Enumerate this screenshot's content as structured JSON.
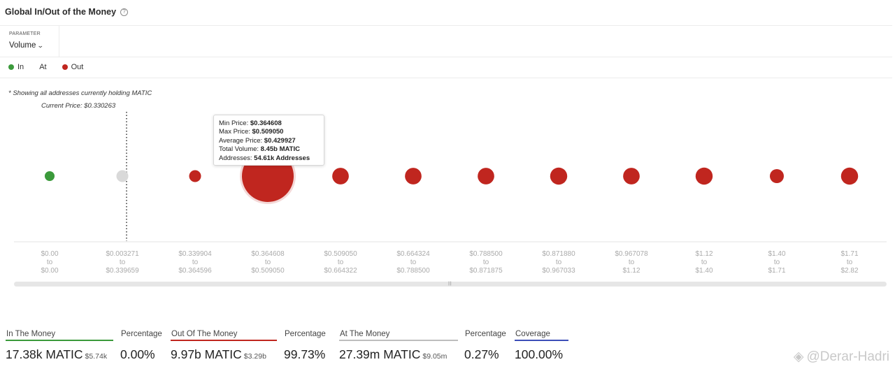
{
  "header": {
    "title": "Global In/Out of the Money",
    "help_icon": "question-circle-icon"
  },
  "parameter": {
    "label": "PARAMETER",
    "value": "Volume"
  },
  "legend": [
    {
      "label": "In",
      "color": "#3b9a3b"
    },
    {
      "label": "At",
      "color": "#d9d9d9"
    },
    {
      "label": "Out",
      "color": "#c0261f"
    }
  ],
  "note": "* Showing all addresses currently holding MATIC",
  "current_price_label": "Current Price: $0.330263",
  "tooltip": {
    "rows": [
      {
        "label": "Min Price: ",
        "value": "$0.364608"
      },
      {
        "label": "Max Price: ",
        "value": "$0.509050"
      },
      {
        "label": "Average Price: ",
        "value": "$0.429927"
      },
      {
        "label": "Total Volume: ",
        "value": "8.45b MATIC"
      },
      {
        "label": "Addresses: ",
        "value": "54.61k Addresses"
      }
    ]
  },
  "chart_data": {
    "type": "scatter",
    "current_price": 0.330263,
    "current_price_bucket_index": 1,
    "highlighted_index": 3,
    "buckets": [
      {
        "from": "$0.00",
        "to": "$0.00",
        "status": "in",
        "relative_size": 0.19
      },
      {
        "from": "$0.003271",
        "to": "$0.339659",
        "status": "at",
        "relative_size": 0.23
      },
      {
        "from": "$0.339904",
        "to": "$0.364596",
        "status": "out",
        "relative_size": 0.23
      },
      {
        "from": "$0.364608",
        "to": "$0.509050",
        "status": "out",
        "relative_size": 1.0
      },
      {
        "from": "$0.509050",
        "to": "$0.664322",
        "status": "out",
        "relative_size": 0.32
      },
      {
        "from": "$0.664324",
        "to": "$0.788500",
        "status": "out",
        "relative_size": 0.32
      },
      {
        "from": "$0.788500",
        "to": "$0.871875",
        "status": "out",
        "relative_size": 0.32
      },
      {
        "from": "$0.871880",
        "to": "$0.967033",
        "status": "out",
        "relative_size": 0.33
      },
      {
        "from": "$0.967078",
        "to": "$1.12",
        "status": "out",
        "relative_size": 0.32
      },
      {
        "from": "$1.12",
        "to": "$1.40",
        "status": "out",
        "relative_size": 0.33
      },
      {
        "from": "$1.40",
        "to": "$1.71",
        "status": "out",
        "relative_size": 0.27
      },
      {
        "from": "$1.71",
        "to": "$2.82",
        "status": "out",
        "relative_size": 0.33
      }
    ],
    "to_word": "to",
    "colors": {
      "in": "#3b9a3b",
      "at": "#d9d9d9",
      "out": "#c0261f"
    }
  },
  "stats": [
    {
      "label": "In The Money",
      "value": "17.38k MATIC",
      "sub": "$5.74k",
      "color": "#3b9a3b"
    },
    {
      "label": "Percentage",
      "value": "0.00%",
      "sub": "",
      "color": ""
    },
    {
      "label": "Out Of The Money",
      "value": "9.97b MATIC",
      "sub": "$3.29b",
      "color": "#c0261f"
    },
    {
      "label": "Percentage",
      "value": "99.73%",
      "sub": "",
      "color": ""
    },
    {
      "label": "At The Money",
      "value": "27.39m MATIC",
      "sub": "$9.05m",
      "color": "#bdbdbd"
    },
    {
      "label": "Percentage",
      "value": "0.27%",
      "sub": "",
      "color": ""
    },
    {
      "label": "Coverage",
      "value": "100.00%",
      "sub": "",
      "color": "#3d4fb8"
    }
  ],
  "watermark": {
    "text": "@Derar-Hadri",
    "icon": "diamond-logo-icon"
  }
}
